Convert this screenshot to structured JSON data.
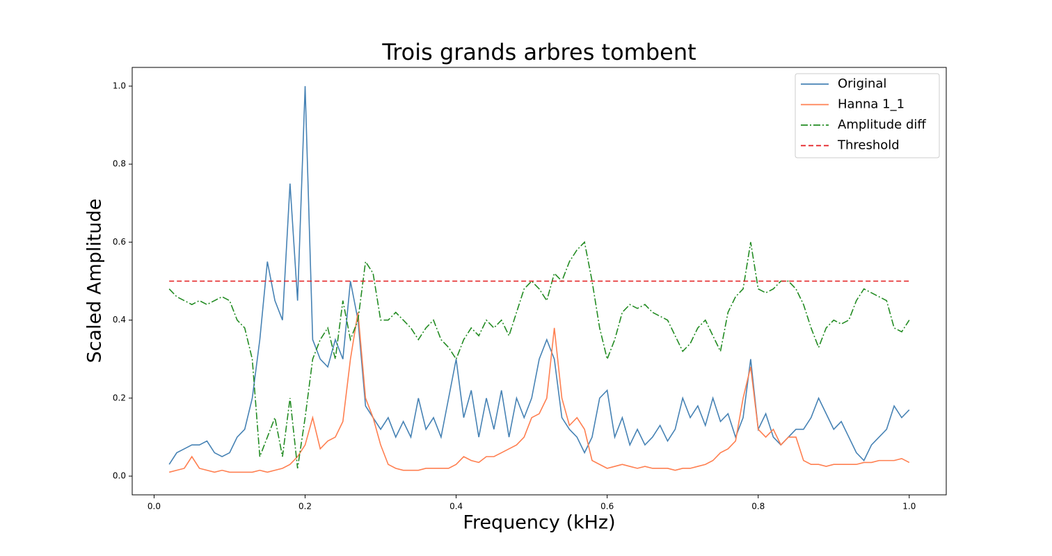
{
  "chart_data": {
    "type": "line",
    "title": "Trois grands arbres tombent",
    "xlabel": "Frequency (kHz)",
    "ylabel": "Scaled Amplitude",
    "x": [
      0.02,
      0.03,
      0.04,
      0.05,
      0.06,
      0.07,
      0.08,
      0.09,
      0.1,
      0.11,
      0.12,
      0.13,
      0.14,
      0.15,
      0.16,
      0.17,
      0.18,
      0.19,
      0.2,
      0.21,
      0.22,
      0.23,
      0.24,
      0.25,
      0.26,
      0.27,
      0.28,
      0.29,
      0.3,
      0.31,
      0.32,
      0.33,
      0.34,
      0.35,
      0.36,
      0.37,
      0.38,
      0.39,
      0.4,
      0.41,
      0.42,
      0.43,
      0.44,
      0.45,
      0.46,
      0.47,
      0.48,
      0.49,
      0.5,
      0.51,
      0.52,
      0.53,
      0.54,
      0.55,
      0.56,
      0.57,
      0.58,
      0.59,
      0.6,
      0.61,
      0.62,
      0.63,
      0.64,
      0.65,
      0.66,
      0.67,
      0.68,
      0.69,
      0.7,
      0.71,
      0.72,
      0.73,
      0.74,
      0.75,
      0.76,
      0.77,
      0.78,
      0.79,
      0.8,
      0.81,
      0.82,
      0.83,
      0.84,
      0.85,
      0.86,
      0.87,
      0.88,
      0.89,
      0.9,
      0.91,
      0.92,
      0.93,
      0.94,
      0.95,
      0.96,
      0.97,
      0.98,
      0.99,
      1.0
    ],
    "series": [
      {
        "name": "Original",
        "color": "#4682b4",
        "linestyle": "solid",
        "values": [
          0.03,
          0.06,
          0.07,
          0.08,
          0.08,
          0.09,
          0.06,
          0.05,
          0.06,
          0.1,
          0.12,
          0.2,
          0.35,
          0.55,
          0.45,
          0.4,
          0.75,
          0.45,
          1.0,
          0.35,
          0.3,
          0.28,
          0.35,
          0.3,
          0.5,
          0.4,
          0.18,
          0.15,
          0.12,
          0.15,
          0.1,
          0.14,
          0.1,
          0.2,
          0.12,
          0.15,
          0.1,
          0.2,
          0.3,
          0.15,
          0.22,
          0.1,
          0.2,
          0.12,
          0.22,
          0.1,
          0.2,
          0.15,
          0.2,
          0.3,
          0.35,
          0.3,
          0.15,
          0.12,
          0.1,
          0.06,
          0.1,
          0.2,
          0.22,
          0.1,
          0.15,
          0.08,
          0.12,
          0.08,
          0.1,
          0.13,
          0.09,
          0.12,
          0.2,
          0.15,
          0.18,
          0.13,
          0.2,
          0.14,
          0.16,
          0.1,
          0.15,
          0.3,
          0.12,
          0.16,
          0.1,
          0.08,
          0.1,
          0.12,
          0.12,
          0.15,
          0.2,
          0.16,
          0.12,
          0.14,
          0.1,
          0.06,
          0.04,
          0.08,
          0.1,
          0.12,
          0.18,
          0.15,
          0.17
        ]
      },
      {
        "name": "Hanna 1_1",
        "color": "#ff7f50",
        "linestyle": "solid",
        "values": [
          0.01,
          0.015,
          0.02,
          0.05,
          0.02,
          0.015,
          0.01,
          0.015,
          0.01,
          0.01,
          0.01,
          0.01,
          0.015,
          0.01,
          0.015,
          0.02,
          0.03,
          0.05,
          0.08,
          0.15,
          0.07,
          0.09,
          0.1,
          0.14,
          0.3,
          0.42,
          0.2,
          0.15,
          0.08,
          0.03,
          0.02,
          0.015,
          0.015,
          0.015,
          0.02,
          0.02,
          0.02,
          0.02,
          0.03,
          0.05,
          0.04,
          0.035,
          0.05,
          0.05,
          0.06,
          0.07,
          0.08,
          0.1,
          0.15,
          0.16,
          0.2,
          0.38,
          0.2,
          0.13,
          0.15,
          0.12,
          0.04,
          0.03,
          0.02,
          0.025,
          0.03,
          0.025,
          0.02,
          0.025,
          0.02,
          0.02,
          0.02,
          0.015,
          0.02,
          0.02,
          0.025,
          0.03,
          0.04,
          0.06,
          0.07,
          0.09,
          0.2,
          0.28,
          0.12,
          0.1,
          0.12,
          0.08,
          0.1,
          0.1,
          0.04,
          0.03,
          0.03,
          0.025,
          0.03,
          0.03,
          0.03,
          0.03,
          0.035,
          0.035,
          0.04,
          0.04,
          0.04,
          0.045,
          0.035
        ]
      },
      {
        "name": "Amplitude diff",
        "color": "#228b22",
        "linestyle": "dashdot",
        "values": [
          0.48,
          0.46,
          0.45,
          0.44,
          0.45,
          0.44,
          0.45,
          0.46,
          0.45,
          0.4,
          0.38,
          0.3,
          0.05,
          0.1,
          0.15,
          0.05,
          0.2,
          0.02,
          0.15,
          0.3,
          0.35,
          0.38,
          0.3,
          0.45,
          0.35,
          0.4,
          0.55,
          0.52,
          0.4,
          0.4,
          0.42,
          0.4,
          0.38,
          0.35,
          0.38,
          0.4,
          0.35,
          0.33,
          0.3,
          0.35,
          0.38,
          0.36,
          0.4,
          0.38,
          0.4,
          0.36,
          0.42,
          0.48,
          0.5,
          0.48,
          0.45,
          0.52,
          0.5,
          0.55,
          0.58,
          0.6,
          0.5,
          0.38,
          0.3,
          0.35,
          0.42,
          0.44,
          0.43,
          0.44,
          0.42,
          0.41,
          0.4,
          0.36,
          0.32,
          0.34,
          0.38,
          0.4,
          0.36,
          0.32,
          0.42,
          0.46,
          0.48,
          0.6,
          0.48,
          0.47,
          0.48,
          0.5,
          0.5,
          0.48,
          0.44,
          0.38,
          0.33,
          0.38,
          0.4,
          0.39,
          0.4,
          0.45,
          0.48,
          0.47,
          0.46,
          0.45,
          0.38,
          0.37,
          0.4
        ]
      },
      {
        "name": "Threshold",
        "color": "#e31a1c",
        "linestyle": "dashed",
        "values": [
          0.5,
          0.5,
          0.5,
          0.5,
          0.5,
          0.5,
          0.5,
          0.5,
          0.5,
          0.5,
          0.5,
          0.5,
          0.5,
          0.5,
          0.5,
          0.5,
          0.5,
          0.5,
          0.5,
          0.5,
          0.5,
          0.5,
          0.5,
          0.5,
          0.5,
          0.5,
          0.5,
          0.5,
          0.5,
          0.5,
          0.5,
          0.5,
          0.5,
          0.5,
          0.5,
          0.5,
          0.5,
          0.5,
          0.5,
          0.5,
          0.5,
          0.5,
          0.5,
          0.5,
          0.5,
          0.5,
          0.5,
          0.5,
          0.5,
          0.5,
          0.5,
          0.5,
          0.5,
          0.5,
          0.5,
          0.5,
          0.5,
          0.5,
          0.5,
          0.5,
          0.5,
          0.5,
          0.5,
          0.5,
          0.5,
          0.5,
          0.5,
          0.5,
          0.5,
          0.5,
          0.5,
          0.5,
          0.5,
          0.5,
          0.5,
          0.5,
          0.5,
          0.5,
          0.5,
          0.5,
          0.5,
          0.5,
          0.5,
          0.5,
          0.5,
          0.5,
          0.5,
          0.5,
          0.5,
          0.5,
          0.5,
          0.5,
          0.5,
          0.5,
          0.5,
          0.5,
          0.5,
          0.5,
          0.5
        ]
      }
    ],
    "xlim": [
      -0.029,
      1.049
    ],
    "ylim": [
      -0.048,
      1.048
    ],
    "xticks": [
      {
        "value": 0,
        "label": "0.0"
      },
      0.2,
      0.4,
      0.6,
      0.8,
      {
        "value": 1,
        "label": "1.0"
      }
    ],
    "yticks": [
      {
        "value": 0,
        "label": "0.0"
      },
      0.2,
      0.4,
      0.6,
      0.8,
      {
        "value": 1,
        "label": "1.0"
      }
    ],
    "grid": false,
    "legend": "upper right"
  }
}
